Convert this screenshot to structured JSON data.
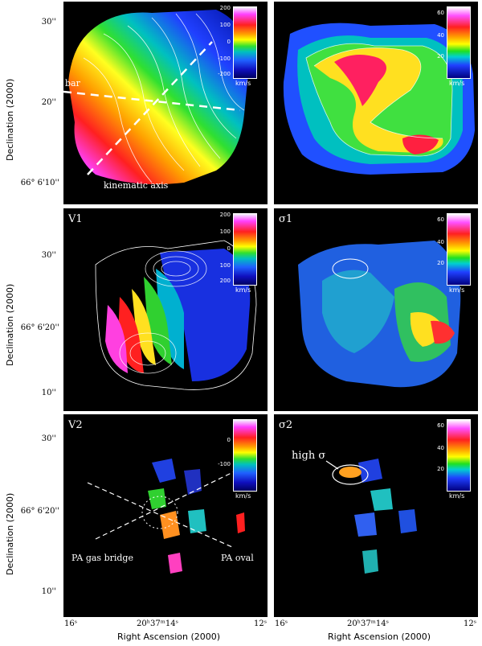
{
  "figure": {
    "y_axis_label": "Declination (2000)",
    "x_axis_label": "Right Ascension (2000)",
    "x_ticks": {
      "left": "16ˢ",
      "center": "20ʰ37ᵐ14ˢ",
      "right": "12ˢ"
    },
    "y_ticks": {
      "t30": "30''",
      "t20": "20''",
      "t20_full": "66° 6'20''",
      "t10": "10''",
      "t10_full": "66° 6'10''"
    },
    "colorbar_unit": "km/s",
    "colorbar_velocity_ticks": [
      "200",
      "100",
      "0",
      "-100",
      "-200"
    ],
    "colorbar_dispersion_ticks": [
      "60",
      "40",
      "20"
    ],
    "colorbar_v1_ticks": [
      "200",
      "100",
      "0",
      "100",
      "200"
    ]
  },
  "panels": {
    "vel": {
      "title": "",
      "annotations": {
        "bar": "bar",
        "kinematic_axis": "kinematic axis"
      }
    },
    "disp": {
      "title": ""
    },
    "v1": {
      "title": "V1"
    },
    "s1": {
      "title": "σ1"
    },
    "v2": {
      "title": "V2",
      "annotations": {
        "pa_gas_bridge": "PA gas bridge",
        "pa_oval": "PA oval"
      }
    },
    "s2": {
      "title": "σ2",
      "annotations": {
        "high_sigma": "high  σ"
      }
    }
  }
}
